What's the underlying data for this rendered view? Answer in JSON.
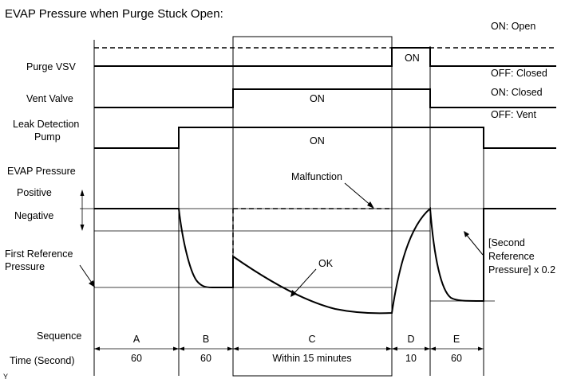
{
  "title": "EVAP Pressure when Purge Stuck Open:",
  "legend": {
    "purge_on": "ON: Open",
    "purge_off": "OFF: Closed",
    "vent_on": "ON: Closed",
    "vent_off": "OFF: Vent"
  },
  "rows": {
    "purge_vsv": "Purge VSV",
    "vent_valve": "Vent Valve",
    "leak_pump_1": "Leak Detection",
    "leak_pump_2": "Pump",
    "evap_pressure": "EVAP Pressure",
    "positive": "Positive",
    "negative": "Negative",
    "first_ref_1": "First Reference",
    "first_ref_2": "Pressure",
    "sequence": "Sequence",
    "time": "Time (Second)"
  },
  "state_labels": {
    "purge_on": "ON",
    "vent_on": "ON",
    "pump_on": "ON"
  },
  "annotations": {
    "malfunction": "Malfunction",
    "ok": "OK",
    "second_ref_1": "[Second",
    "second_ref_2": "Reference",
    "second_ref_3": "Pressure] x 0.2"
  },
  "phases": [
    {
      "label": "A",
      "time": "60"
    },
    {
      "label": "B",
      "time": "60"
    },
    {
      "label": "C",
      "time": "Within 15 minutes"
    },
    {
      "label": "D",
      "time": "10"
    },
    {
      "label": "E",
      "time": "60"
    }
  ],
  "corner_mark": "Y"
}
